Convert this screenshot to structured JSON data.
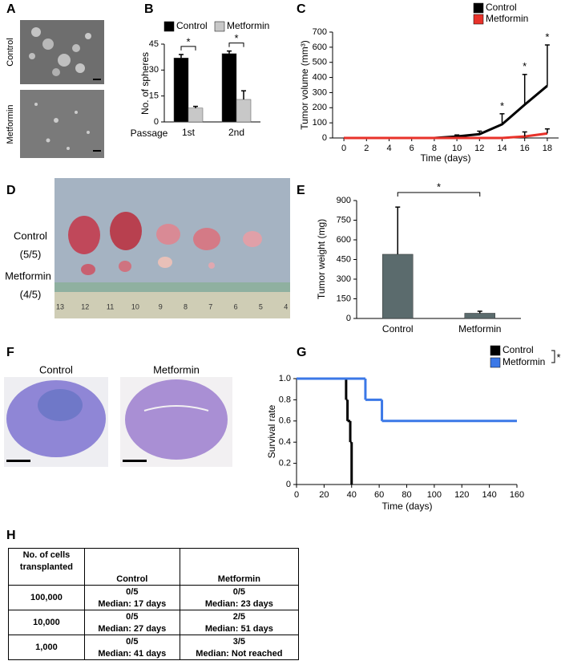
{
  "panel_labels": [
    "A",
    "B",
    "C",
    "D",
    "E",
    "F",
    "G",
    "H"
  ],
  "panel_a": {
    "labels": [
      "Control",
      "Metformin"
    ]
  },
  "panel_d": {
    "labels": [
      "Control",
      "(5/5)",
      "Metformin",
      "(4/5)"
    ],
    "ruler": [
      "13",
      "12",
      "11",
      "10",
      "9",
      "8",
      "7",
      "6",
      "5",
      "4"
    ]
  },
  "panel_f": {
    "labels": [
      "Control",
      "Metformin"
    ]
  },
  "chart_data": [
    {
      "type": "bar",
      "x_label": "Passage",
      "y_label": "No. of spheres",
      "categories": [
        "1st",
        "2nd"
      ],
      "series": [
        {
          "name": "Control",
          "color": "#000000",
          "values": [
            37,
            39.5
          ],
          "errors": [
            2,
            1.5
          ]
        },
        {
          "name": "Metformin",
          "color": "#c8c8c8",
          "values": [
            8,
            13
          ],
          "errors": [
            1,
            5
          ]
        }
      ],
      "ylim": [
        0,
        45
      ],
      "yticks": [
        0,
        15,
        30,
        45
      ],
      "legend": "top",
      "significance": [
        "*",
        "*"
      ]
    },
    {
      "type": "line",
      "x_label": "Time (days)",
      "y_label": "Tumor volume (mm³)",
      "x": [
        0,
        2,
        4,
        6,
        8,
        10,
        12,
        14,
        16,
        18
      ],
      "series": [
        {
          "name": "Control",
          "color": "#000000",
          "values": [
            0,
            0,
            0,
            0,
            0,
            10,
            25,
            90,
            220,
            345
          ],
          "errors": [
            null,
            null,
            null,
            null,
            null,
            10,
            20,
            70,
            200,
            270
          ]
        },
        {
          "name": "Metformin",
          "color": "#e8322a",
          "values": [
            0,
            0,
            0,
            0,
            0,
            0,
            0,
            0,
            10,
            30
          ],
          "errors": [
            null,
            null,
            null,
            null,
            null,
            null,
            null,
            null,
            30,
            30
          ]
        }
      ],
      "xlim": [
        -1,
        19
      ],
      "xticks": [
        0,
        2,
        4,
        6,
        8,
        10,
        12,
        14,
        16,
        18
      ],
      "ylim": [
        0,
        700
      ],
      "yticks": [
        0,
        100,
        200,
        300,
        400,
        500,
        600,
        700
      ],
      "legend": "top right",
      "significance": [
        null,
        null,
        null,
        null,
        null,
        null,
        null,
        "*",
        "*",
        "*"
      ]
    },
    {
      "type": "bar",
      "y_label": "Tumor weight (mg)",
      "categories": [
        "Control",
        "Metformin"
      ],
      "values": [
        490,
        40
      ],
      "errors": [
        360,
        15
      ],
      "color": "#5b6b6d",
      "ylim": [
        0,
        900
      ],
      "yticks": [
        0,
        150,
        300,
        450,
        600,
        750,
        900
      ],
      "significance": "*"
    },
    {
      "type": "line",
      "step": true,
      "x_label": "Time (days)",
      "y_label": "Survival rate",
      "series": [
        {
          "name": "Control",
          "color": "#000000",
          "x": [
            0,
            36,
            37,
            39,
            40
          ],
          "values": [
            1,
            0.8,
            0.6,
            0.4,
            0
          ]
        },
        {
          "name": "Metformin",
          "color": "#3b78e7",
          "x": [
            0,
            50,
            62,
            160
          ],
          "values": [
            1,
            0.8,
            0.6,
            0.6
          ]
        }
      ],
      "xlim": [
        0,
        160
      ],
      "xticks": [
        0,
        20,
        40,
        60,
        80,
        100,
        120,
        140,
        160
      ],
      "ylim": [
        0,
        1
      ],
      "yticks": [
        0,
        0.2,
        0.4,
        0.6,
        0.8,
        {
          "value": 1,
          "label": "1.0"
        }
      ],
      "legend": "top right",
      "significance": "*"
    }
  ],
  "table": {
    "row_header": [
      "No. of cells",
      "transplanted"
    ],
    "columns": [
      "Control",
      "Metformin"
    ],
    "rows": [
      [
        "100,000",
        "0/5",
        "Median: 17 days",
        "0/5",
        "Median: 23 days"
      ],
      [
        "10,000",
        "0/5",
        "Median: 27 days",
        "2/5",
        "Median: 51 days"
      ],
      [
        "1,000",
        "0/5",
        "Median: 41 days",
        "3/5",
        "Median: Not reached"
      ]
    ]
  }
}
